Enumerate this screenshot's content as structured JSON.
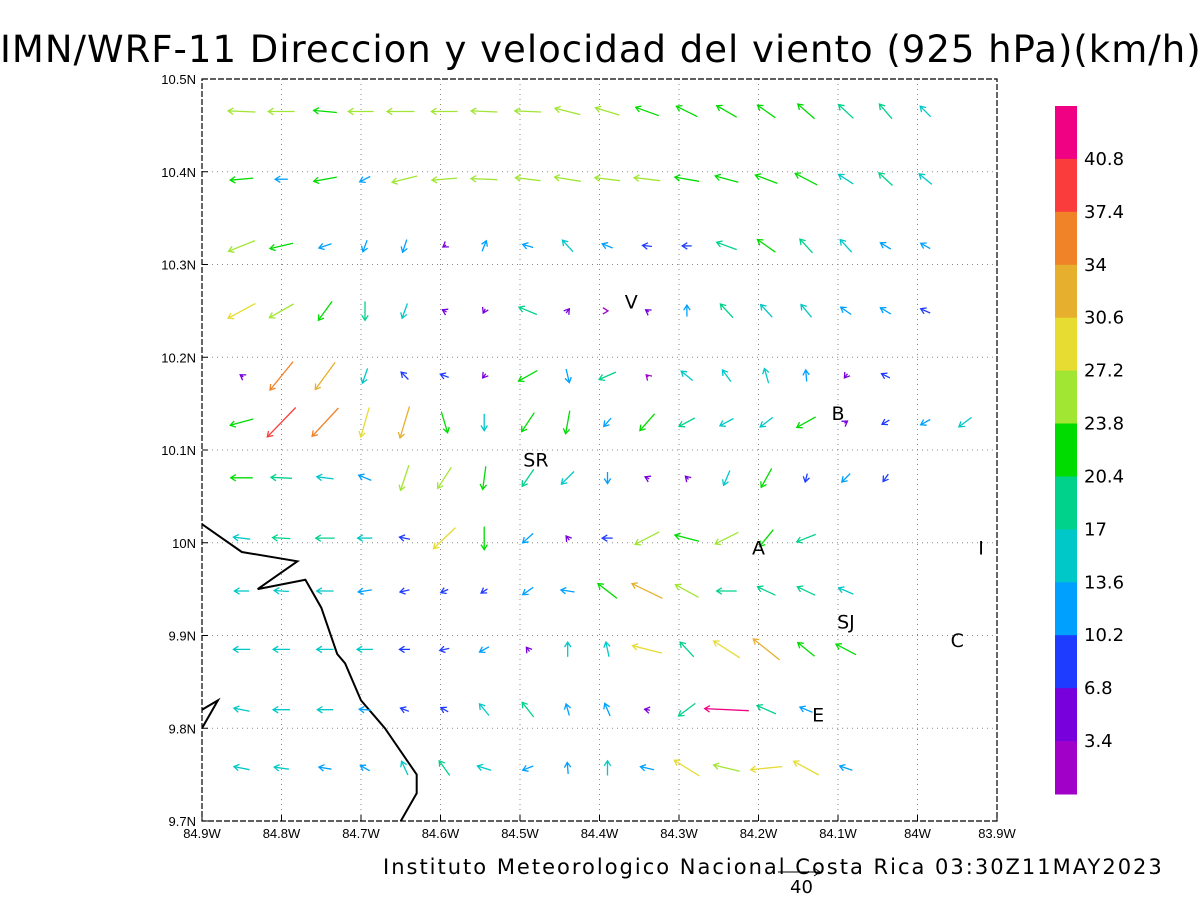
{
  "title": "IMN/WRF-11 Direccion y velocidad del viento (925 hPa)(km/h)",
  "footer": "Instituto Meteorologico Nacional Costa Rica 03:30Z11MAY2023",
  "reference_vector": {
    "label": "40",
    "value": 40
  },
  "axes": {
    "x_ticks": [
      "84.9W",
      "84.8W",
      "84.7W",
      "84.6W",
      "84.5W",
      "84.4W",
      "84.3W",
      "84.2W",
      "84.1W",
      "84W",
      "83.9W"
    ],
    "y_ticks": [
      "10.5N",
      "10.4N",
      "10.3N",
      "10.2N",
      "10.1N",
      "10N",
      "9.9N",
      "9.8N",
      "9.7N"
    ],
    "lon_range": [
      -84.9,
      -83.9
    ],
    "lat_range": [
      9.7,
      10.5
    ],
    "grid": true
  },
  "colorbar": {
    "labels": [
      "3.4",
      "6.8",
      "10.2",
      "13.6",
      "17",
      "20.4",
      "23.8",
      "27.2",
      "30.6",
      "34",
      "37.4",
      "40.8"
    ],
    "colors": [
      "#a000c8",
      "#7800dc",
      "#1e3cff",
      "#00a0ff",
      "#00c8c8",
      "#00d28c",
      "#00dc00",
      "#a0e632",
      "#e6dc32",
      "#e6af2d",
      "#f08228",
      "#fa3c3c",
      "#f00082"
    ]
  },
  "places": [
    {
      "label": "V",
      "lon": -84.36,
      "lat": 10.26
    },
    {
      "label": "SR",
      "lon": -84.48,
      "lat": 10.09
    },
    {
      "label": "B",
      "lon": -84.1,
      "lat": 10.14
    },
    {
      "label": "A",
      "lon": -84.2,
      "lat": 9.995
    },
    {
      "label": "I",
      "lon": -83.92,
      "lat": 9.995
    },
    {
      "label": "SJ",
      "lon": -84.09,
      "lat": 9.915
    },
    {
      "label": "C",
      "lon": -83.95,
      "lat": 9.895
    },
    {
      "label": "E",
      "lon": -84.125,
      "lat": 9.815
    }
  ],
  "coastline": [
    [
      -84.9,
      10.02
    ],
    [
      -84.85,
      9.99
    ],
    [
      -84.78,
      9.98
    ],
    [
      -84.83,
      9.95
    ],
    [
      -84.77,
      9.96
    ],
    [
      -84.75,
      9.93
    ],
    [
      -84.73,
      9.88
    ],
    [
      -84.72,
      9.87
    ],
    [
      -84.7,
      9.83
    ],
    [
      -84.67,
      9.8
    ],
    [
      -84.63,
      9.75
    ],
    [
      -84.63,
      9.73
    ],
    [
      -84.65,
      9.7
    ]
  ],
  "coastline2": [
    [
      -84.9,
      9.82
    ],
    [
      -84.88,
      9.83
    ],
    [
      -84.9,
      9.8
    ]
  ],
  "wind_rows": [
    {
      "lat": 10.465,
      "vectors": [
        [
          -84.85,
          -26,
          1
        ],
        [
          -84.8,
          -25,
          0
        ],
        [
          -84.745,
          -22,
          2
        ],
        [
          -84.7,
          -24,
          0
        ],
        [
          -84.65,
          -26,
          0
        ],
        [
          -84.595,
          -25,
          0
        ],
        [
          -84.545,
          -25,
          1
        ],
        [
          -84.49,
          -25,
          1
        ],
        [
          -84.44,
          -24,
          6
        ],
        [
          -84.39,
          -23,
          7
        ],
        [
          -84.34,
          -22,
          8
        ],
        [
          -84.29,
          -20,
          10
        ],
        [
          -84.24,
          -19,
          11
        ],
        [
          -84.19,
          -17,
          12
        ],
        [
          -84.14,
          -16,
          14
        ],
        [
          -84.09,
          -14,
          13
        ],
        [
          -84.04,
          -12,
          14
        ],
        [
          -83.99,
          -10,
          10
        ]
      ]
    },
    {
      "lat": 10.392,
      "vectors": [
        [
          -84.85,
          -22,
          -2
        ],
        [
          -84.8,
          -12,
          0
        ],
        [
          -84.745,
          -22,
          -4
        ],
        [
          -84.695,
          -10,
          -5
        ],
        [
          -84.645,
          -24,
          -6
        ],
        [
          -84.595,
          -24,
          -2
        ],
        [
          -84.545,
          -25,
          1
        ],
        [
          -84.49,
          -24,
          3
        ],
        [
          -84.44,
          -25,
          4
        ],
        [
          -84.39,
          -24,
          3
        ],
        [
          -84.34,
          -25,
          3
        ],
        [
          -84.29,
          -23,
          4
        ],
        [
          -84.24,
          -22,
          6
        ],
        [
          -84.19,
          -21,
          8
        ],
        [
          -84.14,
          -21,
          11
        ],
        [
          -84.09,
          -14,
          9
        ],
        [
          -84.04,
          -13,
          12
        ],
        [
          -83.99,
          -12,
          10
        ]
      ]
    },
    {
      "lat": 10.32,
      "vectors": [
        [
          -84.85,
          -25,
          -10
        ],
        [
          -84.8,
          -22,
          -5
        ],
        [
          -84.745,
          -12,
          -4
        ],
        [
          -84.695,
          -4,
          -11
        ],
        [
          -84.645,
          -4,
          -12
        ],
        [
          -84.595,
          -3,
          -2
        ],
        [
          -84.545,
          4,
          10
        ],
        [
          -84.49,
          -10,
          3
        ],
        [
          -84.44,
          -10,
          11
        ],
        [
          -84.39,
          -10,
          4
        ],
        [
          -84.34,
          -9,
          1
        ],
        [
          -84.29,
          -9,
          0
        ],
        [
          -84.24,
          -19,
          7
        ],
        [
          -84.19,
          -17,
          12
        ],
        [
          -84.14,
          -12,
          13
        ],
        [
          -84.09,
          -11,
          12
        ],
        [
          -84.04,
          -10,
          6
        ],
        [
          -83.99,
          -9,
          5
        ]
      ]
    },
    {
      "lat": 10.25,
      "vectors": [
        [
          -84.85,
          -26,
          -14
        ],
        [
          -84.8,
          -23,
          -13
        ],
        [
          -84.745,
          -13,
          -18
        ],
        [
          -84.695,
          0,
          -18
        ],
        [
          -84.645,
          -5,
          -14
        ],
        [
          -84.595,
          -4,
          2
        ],
        [
          -84.545,
          -2,
          -4
        ],
        [
          -84.49,
          -17,
          7
        ],
        [
          -84.44,
          3,
          4
        ],
        [
          -84.39,
          1,
          0
        ],
        [
          -84.34,
          -3,
          2
        ],
        [
          -84.29,
          0,
          11
        ],
        [
          -84.24,
          -12,
          13
        ],
        [
          -84.19,
          -11,
          12
        ],
        [
          -84.14,
          -10,
          12
        ],
        [
          -84.09,
          -10,
          7
        ],
        [
          -84.04,
          -10,
          6
        ],
        [
          -83.99,
          -9,
          4
        ]
      ]
    },
    {
      "lat": 10.18,
      "vectors": [
        [
          -84.85,
          -3,
          2
        ],
        [
          -84.8,
          -22,
          -27
        ],
        [
          -84.745,
          -19,
          -26
        ],
        [
          -84.695,
          -5,
          -14
        ],
        [
          -84.645,
          -7,
          7
        ],
        [
          -84.595,
          -8,
          3
        ],
        [
          -84.545,
          -3,
          -4
        ],
        [
          -84.49,
          -18,
          -10
        ],
        [
          -84.44,
          3,
          -13
        ],
        [
          -84.39,
          -16,
          -7
        ],
        [
          -84.34,
          -2,
          2
        ],
        [
          -84.29,
          -11,
          9
        ],
        [
          -84.24,
          -8,
          11
        ],
        [
          -84.19,
          -4,
          14
        ],
        [
          -84.14,
          -1,
          11
        ],
        [
          -84.09,
          -3,
          -4
        ],
        [
          -84.04,
          -8,
          4
        ]
      ]
    },
    {
      "lat": 10.13,
      "vectors": [
        [
          -84.85,
          -22,
          -6
        ],
        [
          -84.8,
          -27,
          -28
        ],
        [
          -84.745,
          -25,
          -27
        ],
        [
          -84.695,
          -8,
          -28
        ],
        [
          -84.645,
          -9,
          -30
        ],
        [
          -84.595,
          6,
          -20
        ],
        [
          -84.545,
          0,
          -16
        ],
        [
          -84.49,
          -12,
          -18
        ],
        [
          -84.44,
          -4,
          -22
        ],
        [
          -84.39,
          -7,
          -8
        ],
        [
          -84.34,
          -14,
          -16
        ],
        [
          -84.29,
          -15,
          -8
        ],
        [
          -84.24,
          -13,
          -7
        ],
        [
          -84.19,
          -12,
          -9
        ],
        [
          -84.14,
          -18,
          -10
        ],
        [
          -84.09,
          3,
          2
        ],
        [
          -84.04,
          -7,
          -4
        ],
        [
          -83.99,
          -9,
          -5
        ],
        [
          -83.94,
          -12,
          -9
        ]
      ]
    },
    {
      "lat": 10.07,
      "vectors": [
        [
          -84.85,
          -21,
          0
        ],
        [
          -84.8,
          -20,
          1
        ],
        [
          -84.745,
          -16,
          2
        ],
        [
          -84.695,
          -12,
          5
        ],
        [
          -84.645,
          -8,
          -24
        ],
        [
          -84.595,
          -13,
          -20
        ],
        [
          -84.545,
          -3,
          -22
        ],
        [
          -84.49,
          -11,
          -16
        ],
        [
          -84.44,
          -12,
          -12
        ],
        [
          -84.39,
          0,
          -11
        ],
        [
          -84.34,
          -4,
          2
        ],
        [
          -84.29,
          -3,
          3
        ],
        [
          -84.24,
          -6,
          -14
        ],
        [
          -84.19,
          -10,
          -18
        ],
        [
          -84.14,
          -2,
          -8
        ],
        [
          -84.09,
          -8,
          -8
        ],
        [
          -84.04,
          -5,
          -7
        ]
      ]
    },
    {
      "lat": 10.005,
      "vectors": [
        [
          -84.85,
          -16,
          2
        ],
        [
          -84.8,
          -17,
          1
        ],
        [
          -84.745,
          -18,
          0
        ],
        [
          -84.695,
          -14,
          0
        ],
        [
          -84.645,
          -10,
          2
        ],
        [
          -84.595,
          -21,
          -20
        ],
        [
          -84.545,
          0,
          -22
        ],
        [
          -84.49,
          -10,
          -9
        ],
        [
          -84.44,
          -3,
          4
        ],
        [
          -84.39,
          -10,
          0
        ],
        [
          -84.34,
          -23,
          -12
        ],
        [
          -84.29,
          -23,
          6
        ],
        [
          -84.24,
          -22,
          -11
        ],
        [
          -84.19,
          -13,
          -16
        ],
        [
          -84.14,
          -18,
          -7
        ]
      ]
    },
    {
      "lat": 9.948,
      "vectors": [
        [
          -84.85,
          -14,
          0
        ],
        [
          -84.8,
          -14,
          1
        ],
        [
          -84.745,
          -16,
          0
        ],
        [
          -84.695,
          -13,
          -2
        ],
        [
          -84.645,
          -9,
          -2
        ],
        [
          -84.595,
          -7,
          -3
        ],
        [
          -84.545,
          -6,
          -4
        ],
        [
          -84.49,
          -10,
          -7
        ],
        [
          -84.44,
          -13,
          2
        ],
        [
          -84.39,
          -18,
          14
        ],
        [
          -84.34,
          -29,
          14
        ],
        [
          -84.29,
          -22,
          12
        ],
        [
          -84.24,
          -19,
          0
        ],
        [
          -84.19,
          -17,
          8
        ],
        [
          -84.14,
          -17,
          8
        ],
        [
          -84.09,
          -14,
          6
        ]
      ]
    },
    {
      "lat": 9.885,
      "vectors": [
        [
          -84.85,
          -16,
          0
        ],
        [
          -84.8,
          -16,
          0
        ],
        [
          -84.745,
          -16,
          0
        ],
        [
          -84.695,
          -15,
          0
        ],
        [
          -84.645,
          -10,
          0
        ],
        [
          -84.595,
          -9,
          -2
        ],
        [
          -84.545,
          -9,
          -5
        ],
        [
          -84.49,
          -3,
          4
        ],
        [
          -84.44,
          0,
          14
        ],
        [
          -84.39,
          -3,
          14
        ],
        [
          -84.34,
          -28,
          7
        ],
        [
          -84.29,
          -13,
          14
        ],
        [
          -84.24,
          -25,
          16
        ],
        [
          -84.19,
          -25,
          20
        ],
        [
          -84.14,
          -16,
          13
        ],
        [
          -84.09,
          -19,
          10
        ]
      ]
    },
    {
      "lat": 9.82,
      "vectors": [
        [
          -84.85,
          -15,
          3
        ],
        [
          -84.8,
          -16,
          0
        ],
        [
          -84.745,
          -15,
          0
        ],
        [
          -84.695,
          -11,
          1
        ],
        [
          -84.645,
          -8,
          3
        ],
        [
          -84.595,
          -7,
          4
        ],
        [
          -84.545,
          -9,
          11
        ],
        [
          -84.49,
          -11,
          14
        ],
        [
          -84.44,
          -3,
          11
        ],
        [
          -84.39,
          -5,
          12
        ],
        [
          -84.34,
          -5,
          1
        ],
        [
          -84.29,
          -16,
          -12
        ],
        [
          -84.24,
          -42,
          2
        ],
        [
          -84.19,
          -18,
          8
        ],
        [
          -84.14,
          -12,
          5
        ]
      ]
    },
    {
      "lat": 9.757,
      "vectors": [
        [
          -84.85,
          -15,
          3
        ],
        [
          -84.8,
          -14,
          2
        ],
        [
          -84.745,
          -12,
          2
        ],
        [
          -84.695,
          -9,
          5
        ],
        [
          -84.645,
          -6,
          13
        ],
        [
          -84.595,
          -10,
          14
        ],
        [
          -84.545,
          -13,
          4
        ],
        [
          -84.49,
          -10,
          -4
        ],
        [
          -84.44,
          -1,
          11
        ],
        [
          -84.39,
          0,
          14
        ],
        [
          -84.34,
          -13,
          3
        ],
        [
          -84.29,
          -24,
          15
        ],
        [
          -84.24,
          -25,
          6
        ],
        [
          -84.19,
          -30,
          -3
        ],
        [
          -84.14,
          -24,
          13
        ],
        [
          -84.09,
          -12,
          4
        ]
      ]
    }
  ]
}
